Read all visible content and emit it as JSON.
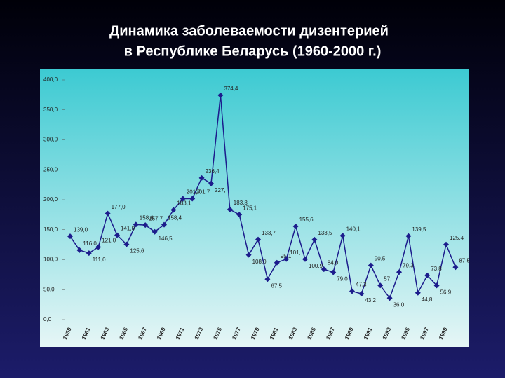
{
  "chart_data": {
    "type": "line",
    "title": [
      "Динамика заболеваемости дизентерией",
      "в Республике Беларусь (1960-2000 г.)"
    ],
    "categories": [
      "1959",
      null,
      "1961",
      null,
      "1963",
      null,
      "1965",
      null,
      "1967",
      null,
      "1969",
      null,
      "1971",
      null,
      "1973",
      null,
      "1975",
      null,
      "1977",
      null,
      "1979",
      null,
      "1981",
      null,
      "1983",
      null,
      "1985",
      null,
      "1987",
      null,
      "1989",
      null,
      "1991",
      null,
      "1993",
      null,
      "1995",
      null,
      "1997",
      null,
      "1999",
      null
    ],
    "values": [
      139.0,
      116.0,
      111.0,
      121.0,
      177.0,
      141.0,
      125.6,
      158.6,
      157.7,
      146.5,
      158.4,
      183.1,
      201.7,
      201.7,
      236.4,
      227,
      374.4,
      183.8,
      175.1,
      108.0,
      133.7,
      67.5,
      95.1,
      101,
      155.6,
      100.9,
      133.5,
      84.0,
      79.0,
      140.1,
      47.3,
      43.2,
      90.5,
      57,
      36.0,
      79.3,
      139.5,
      44.8,
      73.8,
      56.9,
      125.4,
      87.5
    ],
    "value_labels": [
      "139,0",
      "116,0",
      "111,0",
      "121,0",
      "177,0",
      "141,0",
      "125,6",
      "158,6",
      "157,7",
      "146,5",
      "158,4",
      "183,1",
      "201,7",
      "201,7",
      "236,4",
      "227,",
      "374,4",
      "183,8",
      "175,1",
      "108,0",
      "133,7",
      "67,5",
      "95,1",
      "101,",
      "155,6",
      "100,9",
      "133,5",
      "84,0",
      "79,0",
      "140,1",
      "47,3",
      "43,2",
      "90,5",
      "57,",
      "36,0",
      "79,3",
      "139,5",
      "44,8",
      "73,8",
      "56,9",
      "125,4",
      "87,5"
    ],
    "color": "#1c1c8c",
    "ylim": [
      0,
      400
    ],
    "yticks": [
      {
        "value": 0,
        "label": "0,0"
      },
      {
        "value": 50,
        "label": "50,0"
      },
      {
        "value": 100,
        "label": "100,0"
      },
      {
        "value": 150,
        "label": "150,0"
      },
      {
        "value": 200,
        "label": "200,0"
      },
      {
        "value": 250,
        "label": "250,0"
      },
      {
        "value": 300,
        "label": "300,0"
      },
      {
        "value": 350,
        "label": "350,0"
      },
      {
        "value": 400,
        "label": "400,0"
      }
    ]
  }
}
